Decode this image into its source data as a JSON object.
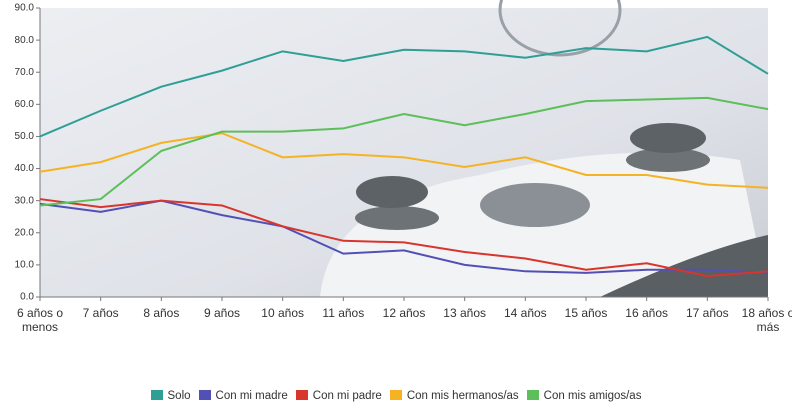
{
  "chart_data": {
    "type": "line",
    "categories": [
      "6 años o menos",
      "7 años",
      "8 años",
      "9 años",
      "10 años",
      "11 años",
      "12 años",
      "13 años",
      "14 años",
      "15 años",
      "16 años",
      "17 años",
      "18 años o más"
    ],
    "series": [
      {
        "name": "Solo",
        "color": "#2f9f96",
        "values": [
          50,
          58,
          65.5,
          70.5,
          76.5,
          73.5,
          77,
          76.5,
          74.5,
          77.5,
          76.5,
          81,
          69.5
        ]
      },
      {
        "name": "Con mi madre",
        "color": "#5250b5",
        "values": [
          29,
          26.5,
          30,
          25.5,
          22,
          13.5,
          14.5,
          10,
          8,
          7.5,
          8.5,
          8.5,
          7.5
        ]
      },
      {
        "name": "Con mi padre",
        "color": "#d8352c",
        "values": [
          30.5,
          28,
          30,
          28.5,
          22,
          17.5,
          17,
          14,
          12,
          8.5,
          10.5,
          6.5,
          8
        ]
      },
      {
        "name": "Con mis hermanos/as",
        "color": "#f5b324",
        "values": [
          39,
          42,
          48,
          51,
          43.5,
          44.5,
          43.5,
          40.5,
          43.5,
          38,
          38,
          35,
          34
        ]
      },
      {
        "name": "Con mis amigos/as",
        "color": "#5cbf5a",
        "values": [
          28.5,
          30.5,
          45.5,
          51.5,
          51.5,
          52.5,
          57,
          53.5,
          57,
          61,
          61.5,
          62,
          58.5
        ]
      }
    ],
    "ylim": [
      0,
      90
    ],
    "yticks": [
      {
        "value": 0,
        "label": "0.0"
      },
      {
        "value": 10,
        "label": "10.0"
      },
      {
        "value": 20,
        "label": "20.0"
      },
      {
        "value": 30,
        "label": "30.0"
      },
      {
        "value": 40,
        "label": "40.0"
      },
      {
        "value": 50,
        "label": "50.0"
      },
      {
        "value": 60,
        "label": "60.0"
      },
      {
        "value": 70,
        "label": "70.0"
      },
      {
        "value": 80,
        "label": "80.0"
      },
      {
        "value": 90,
        "label": "90.0"
      }
    ],
    "legend": "bottom"
  }
}
